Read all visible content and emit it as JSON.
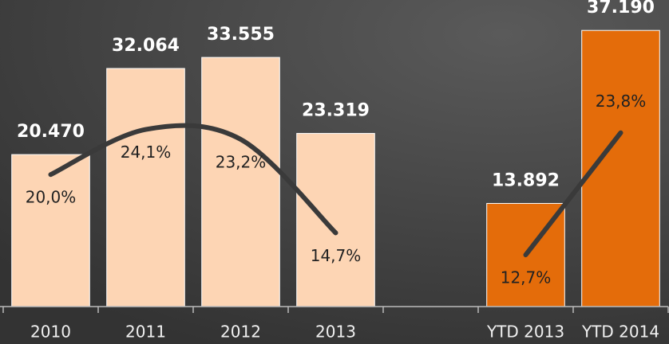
{
  "chart_data": {
    "type": "bar",
    "categories": [
      "2010",
      "2011",
      "2012",
      "2013",
      null,
      "YTD 2013",
      "YTD 2014"
    ],
    "series": [
      {
        "values": [
          20470,
          32064,
          33555,
          23319,
          null,
          13892,
          37190
        ],
        "value_labels": [
          "20.470",
          "32.064",
          "33.555",
          "23.319",
          null,
          "13.892",
          "37.190"
        ],
        "colors": [
          "#fdd5b4",
          "#fdd5b4",
          "#fdd5b4",
          "#fdd5b4",
          null,
          "#e46c0a",
          "#e46c0a"
        ]
      },
      {
        "type": "line",
        "axis": "y2",
        "color": "#3a3a3a",
        "values": [
          20.0,
          24.1,
          23.2,
          14.7,
          null,
          12.7,
          23.8
        ],
        "value_labels": [
          "20,0%",
          "24,1%",
          "23,2%",
          "14,7%",
          null,
          "12,7%",
          "23,8%"
        ]
      }
    ],
    "ylim": [
      0,
      40000
    ],
    "y2lim": [
      8,
      35
    ]
  }
}
